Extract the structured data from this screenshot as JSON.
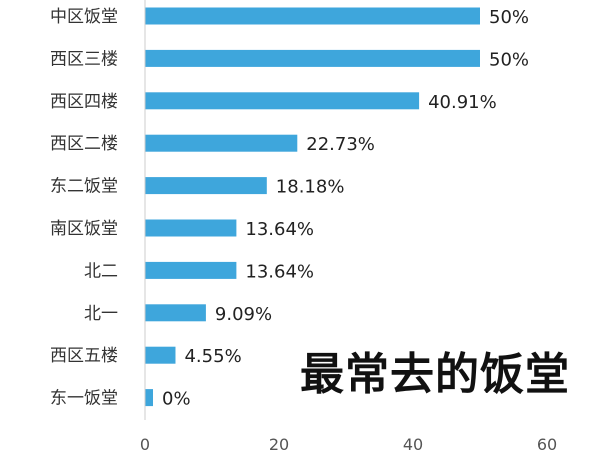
{
  "chart_data": {
    "type": "bar",
    "orientation": "horizontal",
    "categories": [
      "中区饭堂",
      "西区三楼",
      "西区四楼",
      "西区二楼",
      "东二饭堂",
      "南区饭堂",
      "北二",
      "北一",
      "西区五楼",
      "东一饭堂"
    ],
    "values": [
      50,
      50,
      40.91,
      22.73,
      18.18,
      13.64,
      13.64,
      9.09,
      4.55,
      0
    ],
    "value_labels": [
      "50%",
      "50%",
      "40.91%",
      "22.73%",
      "18.18%",
      "13.64%",
      "13.64%",
      "9.09%",
      "4.55%",
      "0%"
    ],
    "xlim": [
      0,
      60
    ],
    "x_ticks": [
      "0",
      "20",
      "40",
      "60"
    ],
    "bar_color": "#3ea6dc",
    "title": "最常去的饭堂",
    "grid": false,
    "legend": "none"
  }
}
